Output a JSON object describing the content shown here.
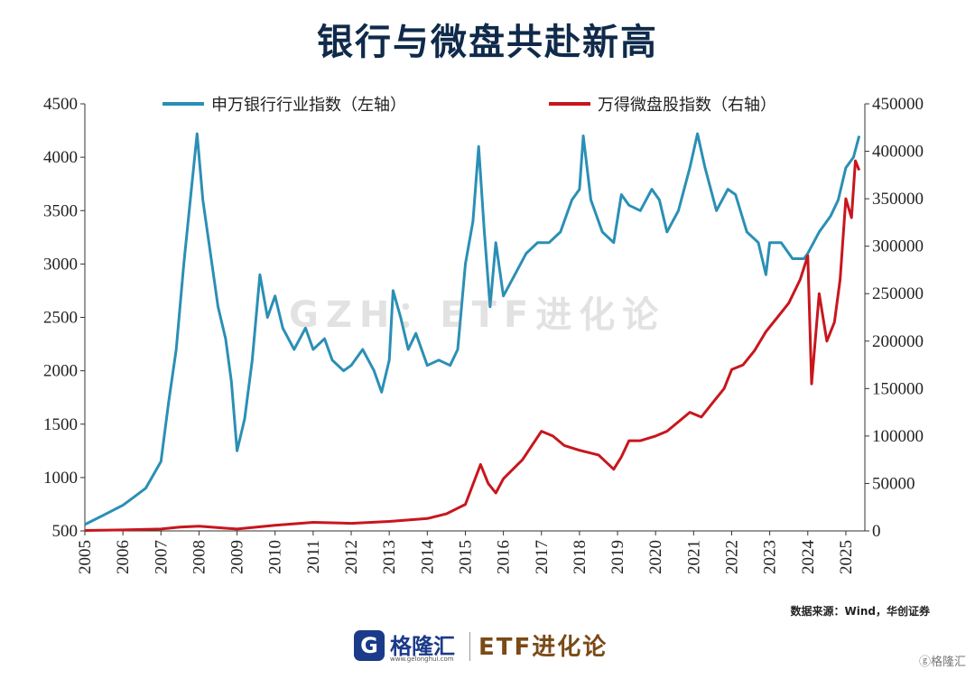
{
  "title": "银行与微盘共赴新高",
  "watermark": "GZH：ETF进化论",
  "source": "数据来源：Wind，华创证券",
  "footer": {
    "logo_icon": "G",
    "logo_name": "格隆汇",
    "logo_url": "www.gelonghui.com",
    "brand": "ETF进化论",
    "corner_mark": "ⓖ格隆汇"
  },
  "colors": {
    "bank": "#2b8fb5",
    "micro": "#c8161d"
  },
  "chart_data": {
    "type": "line",
    "title": "银行与微盘共赴新高",
    "x_ticks": [
      "2005",
      "2006",
      "2007",
      "2008",
      "2009",
      "2010",
      "2011",
      "2012",
      "2013",
      "2014",
      "2015",
      "2016",
      "2017",
      "2018",
      "2019",
      "2020",
      "2021",
      "2022",
      "2023",
      "2024",
      "2025"
    ],
    "y_left": {
      "ticks": [
        "500",
        "1000",
        "1500",
        "2000",
        "2500",
        "3000",
        "3500",
        "4000",
        "4500"
      ],
      "lim": [
        500,
        4500
      ]
    },
    "y_right": {
      "ticks": [
        "0",
        "50000",
        "100000",
        "150000",
        "200000",
        "250000",
        "300000",
        "350000",
        "400000",
        "450000"
      ],
      "lim": [
        0,
        450000
      ]
    },
    "series": [
      {
        "name": "申万银行行业指数（左轴）",
        "axis": "left",
        "color": "#2b8fb5",
        "points": [
          [
            2005.0,
            560
          ],
          [
            2005.5,
            650
          ],
          [
            2006.0,
            740
          ],
          [
            2006.3,
            820
          ],
          [
            2006.6,
            900
          ],
          [
            2007.0,
            1150
          ],
          [
            2007.2,
            1700
          ],
          [
            2007.4,
            2200
          ],
          [
            2007.6,
            3000
          ],
          [
            2007.8,
            3700
          ],
          [
            2007.95,
            4220
          ],
          [
            2008.1,
            3600
          ],
          [
            2008.3,
            3100
          ],
          [
            2008.5,
            2600
          ],
          [
            2008.7,
            2300
          ],
          [
            2008.85,
            1900
          ],
          [
            2009.0,
            1250
          ],
          [
            2009.2,
            1550
          ],
          [
            2009.4,
            2100
          ],
          [
            2009.6,
            2900
          ],
          [
            2009.8,
            2500
          ],
          [
            2010.0,
            2700
          ],
          [
            2010.2,
            2400
          ],
          [
            2010.5,
            2200
          ],
          [
            2010.8,
            2400
          ],
          [
            2011.0,
            2200
          ],
          [
            2011.3,
            2300
          ],
          [
            2011.5,
            2100
          ],
          [
            2011.8,
            2000
          ],
          [
            2012.0,
            2050
          ],
          [
            2012.3,
            2200
          ],
          [
            2012.6,
            2000
          ],
          [
            2012.8,
            1800
          ],
          [
            2013.0,
            2100
          ],
          [
            2013.1,
            2750
          ],
          [
            2013.3,
            2500
          ],
          [
            2013.5,
            2200
          ],
          [
            2013.7,
            2350
          ],
          [
            2013.9,
            2150
          ],
          [
            2014.0,
            2050
          ],
          [
            2014.3,
            2100
          ],
          [
            2014.6,
            2050
          ],
          [
            2014.8,
            2200
          ],
          [
            2015.0,
            3000
          ],
          [
            2015.2,
            3400
          ],
          [
            2015.35,
            4100
          ],
          [
            2015.5,
            3300
          ],
          [
            2015.65,
            2600
          ],
          [
            2015.8,
            3200
          ],
          [
            2016.0,
            2700
          ],
          [
            2016.3,
            2900
          ],
          [
            2016.6,
            3100
          ],
          [
            2016.9,
            3200
          ],
          [
            2017.2,
            3200
          ],
          [
            2017.5,
            3300
          ],
          [
            2017.8,
            3600
          ],
          [
            2018.0,
            3700
          ],
          [
            2018.1,
            4200
          ],
          [
            2018.3,
            3600
          ],
          [
            2018.6,
            3300
          ],
          [
            2018.9,
            3200
          ],
          [
            2019.1,
            3650
          ],
          [
            2019.3,
            3550
          ],
          [
            2019.6,
            3500
          ],
          [
            2019.9,
            3700
          ],
          [
            2020.1,
            3600
          ],
          [
            2020.3,
            3300
          ],
          [
            2020.6,
            3500
          ],
          [
            2020.9,
            3900
          ],
          [
            2021.1,
            4220
          ],
          [
            2021.3,
            3900
          ],
          [
            2021.6,
            3500
          ],
          [
            2021.9,
            3700
          ],
          [
            2022.1,
            3650
          ],
          [
            2022.4,
            3300
          ],
          [
            2022.7,
            3200
          ],
          [
            2022.9,
            2900
          ],
          [
            2023.0,
            3200
          ],
          [
            2023.3,
            3200
          ],
          [
            2023.6,
            3050
          ],
          [
            2023.9,
            3050
          ],
          [
            2024.0,
            3100
          ],
          [
            2024.3,
            3300
          ],
          [
            2024.6,
            3450
          ],
          [
            2024.8,
            3600
          ],
          [
            2025.0,
            3900
          ],
          [
            2025.2,
            4000
          ],
          [
            2025.35,
            4200
          ]
        ]
      },
      {
        "name": "万得微盘股指数（右轴）",
        "axis": "right",
        "color": "#c8161d",
        "points": [
          [
            2005.0,
            500
          ],
          [
            2006.0,
            1000
          ],
          [
            2007.0,
            2000
          ],
          [
            2007.5,
            4000
          ],
          [
            2008.0,
            5000
          ],
          [
            2009.0,
            2000
          ],
          [
            2010.0,
            6000
          ],
          [
            2011.0,
            9000
          ],
          [
            2012.0,
            8000
          ],
          [
            2013.0,
            10000
          ],
          [
            2014.0,
            13000
          ],
          [
            2014.5,
            18000
          ],
          [
            2015.0,
            28000
          ],
          [
            2015.4,
            70000
          ],
          [
            2015.6,
            50000
          ],
          [
            2015.8,
            40000
          ],
          [
            2016.0,
            55000
          ],
          [
            2016.5,
            75000
          ],
          [
            2017.0,
            105000
          ],
          [
            2017.3,
            100000
          ],
          [
            2017.6,
            90000
          ],
          [
            2018.0,
            85000
          ],
          [
            2018.5,
            80000
          ],
          [
            2018.9,
            65000
          ],
          [
            2019.1,
            78000
          ],
          [
            2019.3,
            95000
          ],
          [
            2019.6,
            95000
          ],
          [
            2020.0,
            100000
          ],
          [
            2020.3,
            105000
          ],
          [
            2020.6,
            115000
          ],
          [
            2020.9,
            125000
          ],
          [
            2021.2,
            120000
          ],
          [
            2021.5,
            135000
          ],
          [
            2021.8,
            150000
          ],
          [
            2022.0,
            170000
          ],
          [
            2022.3,
            175000
          ],
          [
            2022.6,
            190000
          ],
          [
            2022.9,
            210000
          ],
          [
            2023.2,
            225000
          ],
          [
            2023.5,
            240000
          ],
          [
            2023.8,
            265000
          ],
          [
            2024.0,
            290000
          ],
          [
            2024.1,
            155000
          ],
          [
            2024.3,
            250000
          ],
          [
            2024.5,
            200000
          ],
          [
            2024.7,
            220000
          ],
          [
            2024.85,
            265000
          ],
          [
            2025.0,
            350000
          ],
          [
            2025.15,
            330000
          ],
          [
            2025.25,
            390000
          ],
          [
            2025.35,
            380000
          ]
        ]
      }
    ]
  }
}
